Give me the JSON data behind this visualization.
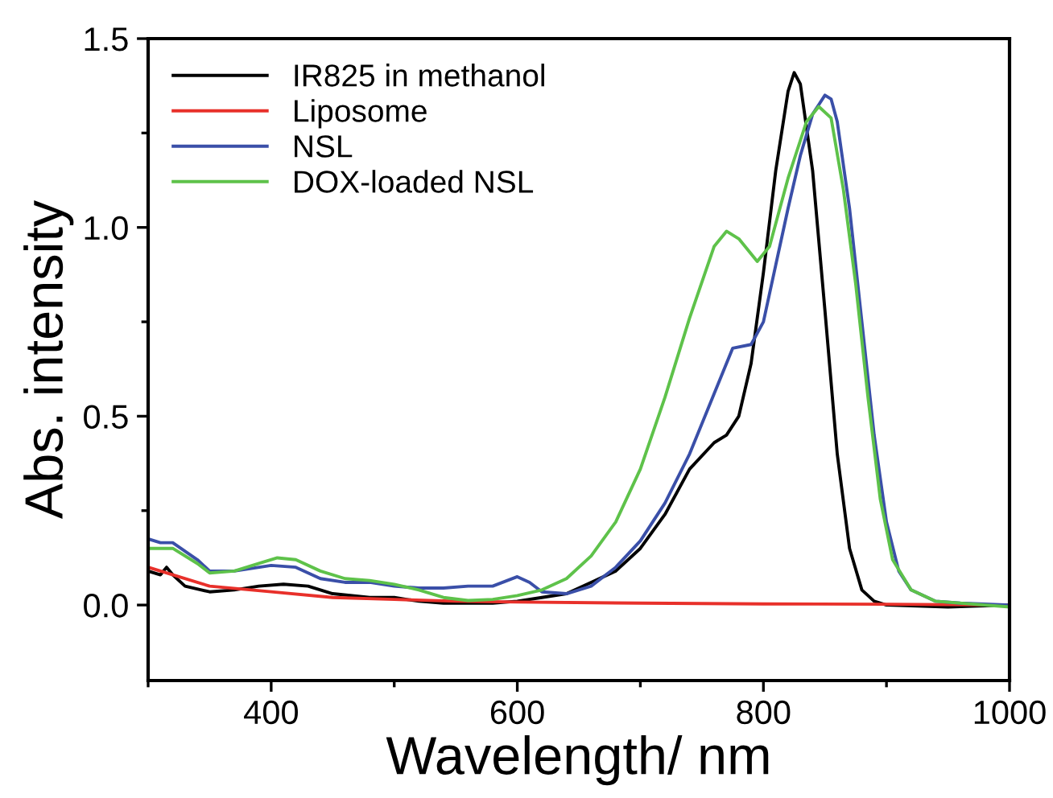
{
  "chart_data": {
    "type": "line",
    "xlabel": "Wavelength/ nm",
    "ylabel": "Abs. intensity",
    "xlim": [
      300,
      1000
    ],
    "xticks": [
      400,
      600,
      800,
      1000
    ],
    "ylim": [
      -0.2,
      1.5
    ],
    "yticks": [
      {
        "value": 0,
        "label": "0.0"
      },
      0.5,
      {
        "value": 1,
        "label": "1.0"
      },
      1.5
    ],
    "grid": false,
    "legend": "top left",
    "marker": "none",
    "line_style": "solid",
    "series": [
      {
        "name": "IR825 in methanol",
        "color": "#000000",
        "x": [
          300,
          310,
          315,
          320,
          330,
          350,
          370,
          390,
          410,
          430,
          450,
          480,
          500,
          520,
          540,
          560,
          580,
          600,
          620,
          640,
          660,
          680,
          700,
          720,
          740,
          760,
          770,
          780,
          790,
          800,
          810,
          820,
          825,
          830,
          840,
          850,
          860,
          870,
          880,
          890,
          900,
          950,
          1000
        ],
        "values": [
          0.09,
          0.08,
          0.1,
          0.08,
          0.05,
          0.035,
          0.04,
          0.05,
          0.055,
          0.05,
          0.03,
          0.02,
          0.02,
          0.01,
          0.005,
          0.005,
          0.005,
          0.01,
          0.02,
          0.03,
          0.06,
          0.09,
          0.15,
          0.24,
          0.36,
          0.43,
          0.45,
          0.5,
          0.64,
          0.88,
          1.15,
          1.36,
          1.41,
          1.38,
          1.15,
          0.78,
          0.4,
          0.15,
          0.04,
          0.01,
          0.0,
          -0.005,
          0.0
        ]
      },
      {
        "name": "Liposome",
        "color": "#e8302a",
        "x": [
          300,
          350,
          400,
          450,
          500,
          550,
          600,
          700,
          800,
          900,
          1000
        ],
        "values": [
          0.1,
          0.05,
          0.035,
          0.02,
          0.015,
          0.01,
          0.008,
          0.005,
          0.003,
          0.002,
          0.0
        ]
      },
      {
        "name": "NSL",
        "color": "#3a4fa8",
        "x": [
          300,
          310,
          320,
          340,
          350,
          370,
          400,
          420,
          440,
          460,
          480,
          500,
          520,
          540,
          560,
          580,
          600,
          610,
          620,
          640,
          660,
          680,
          700,
          720,
          740,
          760,
          775,
          790,
          800,
          810,
          820,
          830,
          840,
          850,
          855,
          860,
          870,
          880,
          890,
          900,
          910,
          920,
          940,
          960,
          1000
        ],
        "values": [
          0.175,
          0.165,
          0.165,
          0.12,
          0.09,
          0.09,
          0.105,
          0.1,
          0.07,
          0.06,
          0.06,
          0.05,
          0.045,
          0.045,
          0.05,
          0.05,
          0.075,
          0.06,
          0.035,
          0.03,
          0.05,
          0.1,
          0.17,
          0.27,
          0.4,
          0.56,
          0.68,
          0.69,
          0.75,
          0.9,
          1.05,
          1.19,
          1.3,
          1.35,
          1.34,
          1.28,
          1.05,
          0.75,
          0.45,
          0.22,
          0.09,
          0.04,
          0.01,
          0.005,
          0.0
        ]
      },
      {
        "name": "DOX-loaded NSL",
        "color": "#5ec24a",
        "x": [
          300,
          320,
          340,
          350,
          370,
          390,
          405,
          420,
          440,
          460,
          480,
          500,
          520,
          540,
          560,
          580,
          600,
          620,
          640,
          660,
          680,
          700,
          720,
          740,
          760,
          770,
          780,
          795,
          805,
          820,
          835,
          845,
          855,
          865,
          875,
          885,
          895,
          905,
          920,
          940,
          1000
        ],
        "values": [
          0.15,
          0.15,
          0.11,
          0.085,
          0.09,
          0.11,
          0.125,
          0.12,
          0.09,
          0.07,
          0.065,
          0.055,
          0.04,
          0.02,
          0.012,
          0.015,
          0.025,
          0.04,
          0.07,
          0.13,
          0.22,
          0.36,
          0.55,
          0.76,
          0.95,
          0.99,
          0.97,
          0.91,
          0.95,
          1.13,
          1.28,
          1.32,
          1.29,
          1.1,
          0.85,
          0.55,
          0.28,
          0.12,
          0.04,
          0.01,
          -0.005
        ]
      }
    ]
  }
}
